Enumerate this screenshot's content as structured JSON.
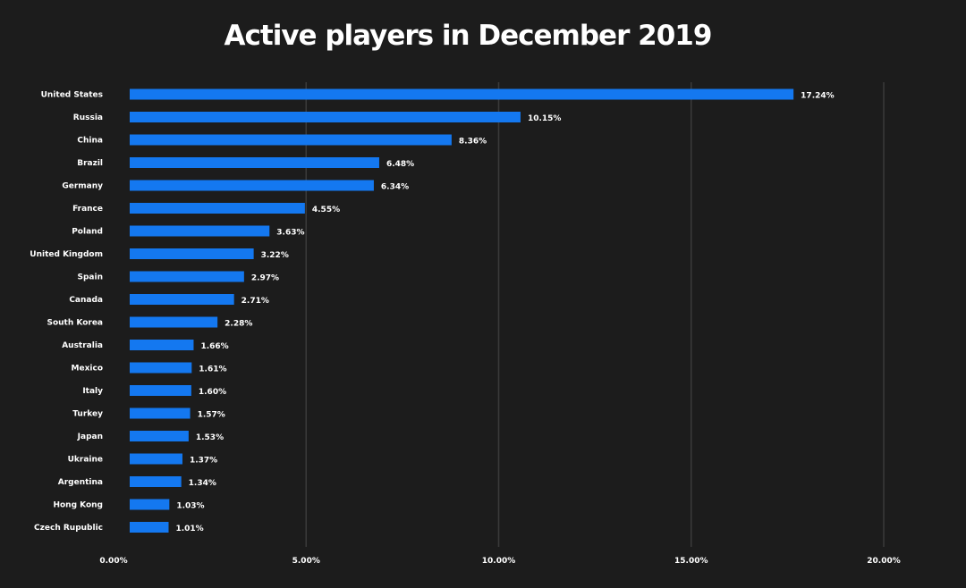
{
  "chart_data": {
    "type": "bar",
    "orientation": "horizontal",
    "title": "Active players in December 2019",
    "xlabel": "",
    "ylabel": "",
    "xlim": [
      0,
      20
    ],
    "grid": true,
    "legend": "none",
    "bar_color": "#1478f0",
    "background_color": "#1c1c1c",
    "gridline_color": "#3a3a3a",
    "categories": [
      "United States",
      "Russia",
      "China",
      "Brazil",
      "Germany",
      "France",
      "Poland",
      "United Kingdom",
      "Spain",
      "Canada",
      "South Korea",
      "Australia",
      "Mexico",
      "Italy",
      "Turkey",
      "Japan",
      "Ukraine",
      "Argentina",
      "Hong Kong",
      "Czech Rupublic"
    ],
    "values": [
      17.24,
      10.15,
      8.36,
      6.48,
      6.34,
      4.55,
      3.63,
      3.22,
      2.97,
      2.71,
      2.28,
      1.66,
      1.61,
      1.6,
      1.57,
      1.53,
      1.37,
      1.34,
      1.03,
      1.01
    ],
    "value_labels": [
      "17.24%",
      "10.15%",
      "8.36%",
      "6.48%",
      "6.34%",
      "4.55%",
      "3.63%",
      "3.22%",
      "2.97%",
      "2.71%",
      "2.28%",
      "1.66%",
      "1.61%",
      "1.60%",
      "1.57%",
      "1.53%",
      "1.37%",
      "1.34%",
      "1.03%",
      "1.01%"
    ],
    "x_ticks": [
      0,
      5,
      10,
      15,
      20
    ],
    "x_tick_labels": [
      "0.00%",
      "5.00%",
      "10.00%",
      "15.00%",
      "20.00%"
    ]
  }
}
